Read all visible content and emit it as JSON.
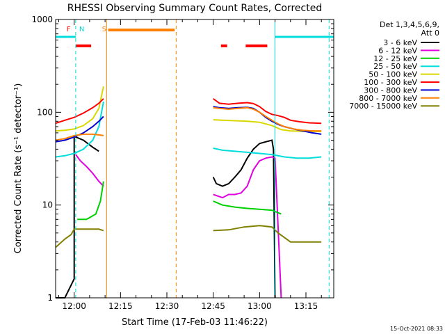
{
  "chart_data": {
    "type": "line",
    "title": "RHESSI Observing Summary Count Rates, Corrected",
    "xlabel": "Start Time (17-Feb-03 11:46:22)",
    "ylabel": "Corrected Count Rate (s⁻¹ detector⁻¹)",
    "yscale": "log",
    "ylim": [
      1,
      1000
    ],
    "xlim_minutes": [
      -6,
      84
    ],
    "x_tick_labels": [
      "12:00",
      "12:15",
      "12:30",
      "12:45",
      "13:00",
      "13:15"
    ],
    "x_tick_minutes": [
      0,
      15,
      30,
      45,
      60,
      75
    ],
    "y_tick_labels": [
      "1",
      "10",
      "100",
      "1000"
    ],
    "y_tick_values": [
      1,
      10,
      100,
      1000
    ],
    "legend_header_1": "Det 1,3,4,5,6,9,",
    "legend_header_2": "Att 0",
    "timestamp": "15-Oct-2021 08:33",
    "series": [
      {
        "name": "3 - 6 keV",
        "color": "#000000",
        "segments": [
          [
            [
              -6,
              1
            ],
            [
              -3,
              1
            ],
            [
              0,
              1.6
            ],
            [
              0,
              55
            ],
            [
              3,
              50
            ],
            [
              6,
              42
            ],
            [
              8,
              38
            ]
          ],
          [
            [
              45,
              20
            ],
            [
              46,
              17
            ],
            [
              48,
              16
            ],
            [
              50,
              17
            ],
            [
              52,
              20
            ],
            [
              54,
              24
            ],
            [
              56,
              32
            ],
            [
              58,
              40
            ],
            [
              60,
              46
            ],
            [
              62,
              48
            ],
            [
              64,
              50
            ],
            [
              64.5,
              40
            ],
            [
              65,
              1
            ]
          ]
        ]
      },
      {
        "name": "6 - 12 keV",
        "color": "#e000e0",
        "segments": [
          [
            [
              0.5,
              35
            ],
            [
              2,
              30
            ],
            [
              4,
              26
            ],
            [
              6,
              22
            ],
            [
              8,
              18
            ],
            [
              9.5,
              16
            ]
          ],
          [
            [
              45,
              13
            ],
            [
              48,
              12
            ],
            [
              50,
              13
            ],
            [
              52,
              13
            ],
            [
              54,
              13.5
            ],
            [
              56,
              16
            ],
            [
              58,
              24
            ],
            [
              60,
              30
            ],
            [
              62,
              32
            ],
            [
              64,
              33
            ],
            [
              65,
              32
            ],
            [
              67,
              1
            ]
          ]
        ]
      },
      {
        "name": "12 - 25 keV",
        "color": "#00d000",
        "segments": [
          [
            [
              1,
              7
            ],
            [
              4,
              7
            ],
            [
              7,
              8
            ],
            [
              8.5,
              11
            ],
            [
              9.5,
              18
            ]
          ],
          [
            [
              45,
              11
            ],
            [
              48,
              10
            ],
            [
              52,
              9.5
            ],
            [
              56,
              9.2
            ],
            [
              60,
              9
            ],
            [
              64,
              8.8
            ],
            [
              67,
              8
            ]
          ]
        ]
      },
      {
        "name": "25 - 50 keV",
        "color": "#00dddd",
        "segments": [
          [
            [
              -6,
              33
            ],
            [
              -3,
              34
            ],
            [
              0,
              36
            ],
            [
              3,
              40
            ],
            [
              6,
              50
            ],
            [
              8,
              70
            ],
            [
              9.5,
              130
            ]
          ],
          [
            [
              45,
              41
            ],
            [
              48,
              39
            ],
            [
              52,
              38
            ],
            [
              56,
              37
            ],
            [
              60,
              36
            ],
            [
              64,
              35
            ],
            [
              68,
              33
            ],
            [
              72,
              32
            ],
            [
              76,
              32
            ],
            [
              80,
              33
            ]
          ]
        ]
      },
      {
        "name": "50 - 100 keV",
        "color": "#d8d800",
        "segments": [
          [
            [
              -6,
              63
            ],
            [
              -3,
              64
            ],
            [
              0,
              66
            ],
            [
              3,
              72
            ],
            [
              6,
              85
            ],
            [
              8,
              110
            ],
            [
              9.5,
              190
            ]
          ],
          [
            [
              45,
              83
            ],
            [
              48,
              82
            ],
            [
              52,
              81
            ],
            [
              56,
              80
            ],
            [
              60,
              78
            ],
            [
              64,
              72
            ],
            [
              67,
              65
            ],
            [
              70,
              63
            ],
            [
              75,
              62
            ],
            [
              80,
              62
            ]
          ]
        ]
      },
      {
        "name": "100 - 300 keV",
        "color": "#ff0000",
        "segments": [
          [
            [
              -6,
              76
            ],
            [
              -3,
              82
            ],
            [
              0,
              88
            ],
            [
              3,
              98
            ],
            [
              6,
              112
            ],
            [
              8,
              125
            ],
            [
              9.5,
              140
            ]
          ],
          [
            [
              45,
              140
            ],
            [
              47,
              125
            ],
            [
              50,
              122
            ],
            [
              53,
              125
            ],
            [
              56,
              127
            ],
            [
              58,
              124
            ],
            [
              60,
              115
            ],
            [
              62,
              102
            ],
            [
              64,
              95
            ],
            [
              66,
              92
            ],
            [
              68,
              88
            ],
            [
              70,
              82
            ],
            [
              73,
              79
            ],
            [
              76,
              77
            ],
            [
              80,
              76
            ]
          ]
        ]
      },
      {
        "name": "300 - 800 keV",
        "color": "#0000d0",
        "segments": [
          [
            [
              -6,
              48
            ],
            [
              -3,
              50
            ],
            [
              0,
              54
            ],
            [
              3,
              60
            ],
            [
              6,
              70
            ],
            [
              8,
              80
            ],
            [
              9.5,
              90
            ]
          ],
          [
            [
              45,
              115
            ],
            [
              47,
              112
            ],
            [
              50,
              110
            ],
            [
              53,
              112
            ],
            [
              56,
              113
            ],
            [
              58,
              110
            ],
            [
              60,
              100
            ],
            [
              62,
              88
            ],
            [
              64,
              80
            ],
            [
              66,
              74
            ],
            [
              68,
              70
            ],
            [
              71,
              66
            ],
            [
              74,
              63
            ],
            [
              77,
              60
            ],
            [
              80,
              58
            ]
          ]
        ]
      },
      {
        "name": "800 - 7000 keV",
        "color": "#ff8000",
        "segments": [
          [
            [
              -6,
              50
            ],
            [
              -3,
              52
            ],
            [
              0,
              56
            ],
            [
              3,
              58
            ],
            [
              6,
              58
            ],
            [
              8,
              57
            ],
            [
              9.5,
              56
            ]
          ],
          [
            [
              45,
              112
            ],
            [
              47,
              110
            ],
            [
              50,
              108
            ],
            [
              53,
              110
            ],
            [
              56,
              112
            ],
            [
              58,
              108
            ],
            [
              60,
              100
            ],
            [
              62,
              90
            ],
            [
              64,
              82
            ],
            [
              66,
              75
            ],
            [
              68,
              70
            ],
            [
              71,
              66
            ],
            [
              74,
              64
            ],
            [
              77,
              63
            ],
            [
              80,
              63
            ]
          ]
        ]
      },
      {
        "name": "7000 - 15000 keV",
        "color": "#808000",
        "segments": [
          [
            [
              -6,
              3.5
            ],
            [
              -3,
              4.3
            ],
            [
              -1,
              4.8
            ],
            [
              0,
              5.5
            ],
            [
              4,
              5.5
            ],
            [
              8,
              5.5
            ],
            [
              9.5,
              5.3
            ]
          ],
          [
            [
              45,
              5.3
            ],
            [
              50,
              5.4
            ],
            [
              55,
              5.8
            ],
            [
              60,
              6
            ],
            [
              64,
              5.8
            ],
            [
              66,
              5
            ],
            [
              70,
              4
            ],
            [
              75,
              4
            ],
            [
              80,
              4
            ]
          ]
        ]
      }
    ],
    "attenuator_level": 650,
    "attenuator_color": "#00dddd",
    "attenuator_segments": [
      [
        -6,
        0.5
      ],
      [
        65,
        84
      ]
    ],
    "vlines": [
      {
        "minute": -6,
        "style": "solid",
        "color": "#00dddd"
      },
      {
        "minute": 0.5,
        "style": "dashed",
        "color": "#00dddd"
      },
      {
        "minute": 10.5,
        "style": "solid",
        "color": "#ff8000"
      },
      {
        "minute": 33,
        "style": "dashed",
        "color": "#ff8000"
      },
      {
        "minute": 65,
        "style": "solid",
        "color": "#00dddd"
      },
      {
        "minute": 82.5,
        "style": "dashed",
        "color": "#00dddd"
      }
    ],
    "flag_labels": [
      {
        "text": "F",
        "minute": -1.8,
        "color": "#ff0000"
      },
      {
        "text": "N",
        "minute": 2.5,
        "color": "#00dddd"
      },
      {
        "text": "S",
        "minute": 9.7,
        "color": "#ff8000"
      }
    ],
    "saa_bar": {
      "start": 11,
      "end": 32.5,
      "level": 770,
      "color": "#ff8000"
    },
    "flare_bars": {
      "level": 520,
      "color": "#ff0000",
      "ranges": [
        [
          0.5,
          5.5
        ],
        [
          47.5,
          49.5
        ],
        [
          55.5,
          62.5
        ]
      ]
    }
  }
}
